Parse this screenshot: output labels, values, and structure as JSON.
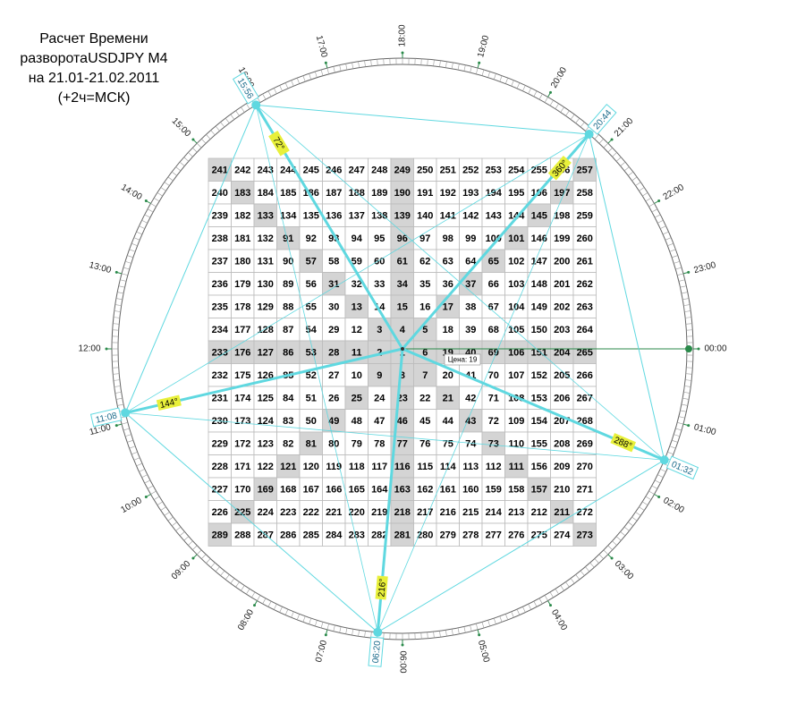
{
  "title": [
    "Расчет Времени",
    "разворотаUSDJPY M4",
    "на 21.01-21.02.2011",
    "(+2ч=МСК)"
  ],
  "hours": [
    "00:00",
    "01:00",
    "02:00",
    "03:00",
    "04:00",
    "05:00",
    "06:00",
    "07:00",
    "08:00",
    "09:00",
    "10:00",
    "11:00",
    "12:00",
    "13:00",
    "14:00",
    "15:00",
    "16:00",
    "17:00",
    "18:00",
    "19:00",
    "20:00",
    "21:00",
    "22:00",
    "23:00"
  ],
  "grid": [
    [
      241,
      242,
      243,
      244,
      245,
      246,
      247,
      248,
      249,
      250,
      251,
      252,
      253,
      254,
      255,
      256,
      257
    ],
    [
      240,
      183,
      184,
      185,
      186,
      187,
      188,
      189,
      190,
      191,
      192,
      193,
      194,
      195,
      196,
      197,
      258
    ],
    [
      239,
      182,
      133,
      134,
      135,
      136,
      137,
      138,
      139,
      140,
      141,
      142,
      143,
      144,
      145,
      198,
      259
    ],
    [
      238,
      181,
      132,
      91,
      92,
      93,
      94,
      95,
      96,
      97,
      98,
      99,
      100,
      101,
      146,
      199,
      260
    ],
    [
      237,
      180,
      131,
      90,
      57,
      58,
      59,
      60,
      61,
      62,
      63,
      64,
      65,
      102,
      147,
      200,
      261
    ],
    [
      236,
      179,
      130,
      89,
      56,
      31,
      32,
      33,
      34,
      35,
      36,
      37,
      66,
      103,
      148,
      201,
      262
    ],
    [
      235,
      178,
      129,
      88,
      55,
      30,
      13,
      14,
      15,
      16,
      17,
      38,
      67,
      104,
      149,
      202,
      263
    ],
    [
      234,
      177,
      128,
      87,
      54,
      29,
      12,
      3,
      4,
      5,
      18,
      39,
      68,
      105,
      150,
      203,
      264
    ],
    [
      233,
      176,
      127,
      86,
      53,
      28,
      11,
      2,
      1,
      6,
      19,
      40,
      69,
      106,
      151,
      204,
      265
    ],
    [
      232,
      175,
      126,
      85,
      52,
      27,
      10,
      9,
      8,
      7,
      20,
      41,
      70,
      107,
      152,
      205,
      266
    ],
    [
      231,
      174,
      125,
      84,
      51,
      26,
      25,
      24,
      23,
      22,
      21,
      42,
      71,
      108,
      153,
      206,
      267
    ],
    [
      230,
      173,
      124,
      83,
      50,
      49,
      48,
      47,
      46,
      45,
      44,
      43,
      72,
      109,
      154,
      207,
      268
    ],
    [
      229,
      172,
      123,
      82,
      81,
      80,
      79,
      78,
      77,
      76,
      75,
      74,
      73,
      110,
      155,
      208,
      269
    ],
    [
      228,
      171,
      122,
      121,
      120,
      119,
      118,
      117,
      116,
      115,
      114,
      113,
      112,
      111,
      156,
      209,
      270
    ],
    [
      227,
      170,
      169,
      168,
      167,
      166,
      165,
      164,
      163,
      162,
      161,
      160,
      159,
      158,
      157,
      210,
      271
    ],
    [
      226,
      225,
      224,
      223,
      222,
      221,
      220,
      219,
      218,
      217,
      216,
      215,
      214,
      213,
      212,
      211,
      272
    ],
    [
      289,
      288,
      287,
      286,
      285,
      284,
      283,
      282,
      281,
      280,
      279,
      278,
      277,
      276,
      275,
      274,
      273
    ]
  ],
  "points": [
    {
      "time": "15:56",
      "degree": "72°"
    },
    {
      "time": "11:08",
      "degree": "144°"
    },
    {
      "time": "06:20",
      "degree": "216°"
    },
    {
      "time": "01:32",
      "degree": "288°"
    },
    {
      "time": "20:44",
      "degree": "360°"
    }
  ],
  "price_label": "Цена: 19"
}
